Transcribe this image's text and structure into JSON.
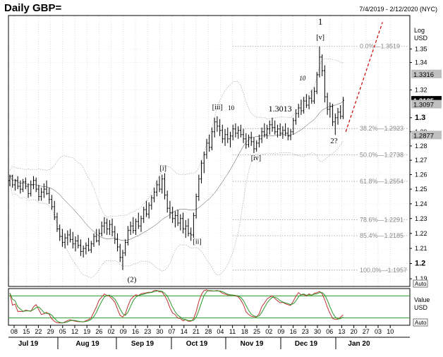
{
  "header": {
    "title": "Daily GBP=",
    "date_range": "7/4/2019 - 2/12/2020 (NYC)"
  },
  "axis": {
    "scale_label": "Log",
    "unit_label": "USD",
    "auto_label": "Auto",
    "lower_value_label": "Value",
    "lower_unit_label": "USD",
    "lower_auto_label": "Auto"
  },
  "chart_data": {
    "type": "candlestick",
    "y_scale": "log",
    "ylim": [
      1.185,
      1.375
    ],
    "y_ticks": [
      {
        "v": 1.35,
        "label": "1.35"
      },
      {
        "v": 1.34,
        "label": "1.34"
      },
      {
        "v": 1.32,
        "label": "1.32"
      },
      {
        "v": 1.3,
        "label": "1.3",
        "bold": true
      },
      {
        "v": 1.29,
        "label": "1.29"
      },
      {
        "v": 1.28,
        "label": "1.28"
      },
      {
        "v": 1.27,
        "label": "1.27"
      },
      {
        "v": 1.26,
        "label": "1.26"
      },
      {
        "v": 1.25,
        "label": "1.25"
      },
      {
        "v": 1.24,
        "label": "1.24"
      },
      {
        "v": 1.23,
        "label": "1.23"
      },
      {
        "v": 1.22,
        "label": "1.22"
      },
      {
        "v": 1.21,
        "label": "1.21"
      },
      {
        "v": 1.2,
        "label": "1.2",
        "bold": true
      },
      {
        "v": 1.19,
        "label": "1.19"
      }
    ],
    "price_tags": [
      {
        "v": 1.3316,
        "label": "1.3316",
        "style": "grey"
      },
      {
        "v": 1.3125,
        "label": "1.3125",
        "style": "black"
      },
      {
        "v": 1.3097,
        "label": "1.3097",
        "style": "grey"
      },
      {
        "v": 1.2877,
        "label": "1.2877",
        "style": "grey"
      }
    ],
    "fib_levels": [
      {
        "v": 1.3519,
        "label": "0.0%—1.3519"
      },
      {
        "v": 1.2923,
        "label": "38.2%—1.2923"
      },
      {
        "v": 1.2738,
        "label": "50.0%—1.2738"
      },
      {
        "v": 1.2554,
        "label": "61.8%—1.2554"
      },
      {
        "v": 1.2291,
        "label": "78.6%—1.2291"
      },
      {
        "v": 1.2185,
        "label": "85.4%—1.2185"
      },
      {
        "v": 1.1957,
        "label": "100.0%—1.1957"
      }
    ],
    "x_day_ticks": [
      "08",
      "15",
      "22",
      "29",
      "05",
      "12",
      "19",
      "26",
      "02",
      "09",
      "16",
      "23",
      "30",
      "07",
      "14",
      "21",
      "28",
      "04",
      "11",
      "18",
      "25",
      "02",
      "09",
      "16",
      "23",
      "30",
      "06",
      "13",
      "20",
      "27",
      "03",
      "10"
    ],
    "x_month_labels": [
      "Jul 19",
      "Aug 19",
      "Sep 19",
      "Oct 19",
      "Nov 19",
      "Dec 19",
      "Jan 20"
    ],
    "wave_labels": [
      {
        "text": "1",
        "v": 1.368,
        "x_index": 118.3,
        "size": 13
      },
      {
        "text": "[v]",
        "v": 1.357,
        "x_index": 118.3,
        "size": 10
      },
      {
        "text": "10",
        "v": 1.327,
        "x_index": 111.5,
        "size": 9,
        "italic": true
      },
      {
        "text": "[iii]",
        "v": 1.306,
        "x_index": 79.1,
        "size": 10
      },
      {
        "text": "10",
        "v": 1.3055,
        "x_index": 84.3,
        "size": 9
      },
      {
        "text": "1.3013",
        "v": 1.3045,
        "x_index": 103,
        "size": 12
      },
      {
        "text": "[iv]",
        "v": 1.27,
        "x_index": 93.8,
        "size": 10
      },
      {
        "text": "2?",
        "v": 1.282,
        "x_index": 123.5,
        "size": 11
      },
      {
        "text": "[i]",
        "v": 1.263,
        "x_index": 58.4,
        "size": 10
      },
      {
        "text": "[ii]",
        "v": 1.213,
        "x_index": 71.4,
        "size": 10
      },
      {
        "text": "(2)",
        "v": 1.188,
        "x_index": 46.5,
        "size": 11
      }
    ],
    "candles": [
      [
        1.256,
        1.26,
        1.252,
        1.259
      ],
      [
        1.259,
        1.26,
        1.251,
        1.253
      ],
      [
        1.253,
        1.257,
        1.249,
        1.256
      ],
      [
        1.256,
        1.259,
        1.25,
        1.252
      ],
      [
        1.252,
        1.256,
        1.247,
        1.25
      ],
      [
        1.25,
        1.257,
        1.248,
        1.255
      ],
      [
        1.255,
        1.258,
        1.25,
        1.252
      ],
      [
        1.252,
        1.254,
        1.244,
        1.247
      ],
      [
        1.247,
        1.256,
        1.245,
        1.253
      ],
      [
        1.253,
        1.259,
        1.25,
        1.256
      ],
      [
        1.256,
        1.258,
        1.248,
        1.25
      ],
      [
        1.25,
        1.253,
        1.242,
        1.245
      ],
      [
        1.245,
        1.251,
        1.242,
        1.248
      ],
      [
        1.248,
        1.254,
        1.244,
        1.25
      ],
      [
        1.25,
        1.256,
        1.246,
        1.247
      ],
      [
        1.247,
        1.251,
        1.24,
        1.243
      ],
      [
        1.243,
        1.246,
        1.236,
        1.238
      ],
      [
        1.238,
        1.242,
        1.229,
        1.231
      ],
      [
        1.231,
        1.234,
        1.221,
        1.223
      ],
      [
        1.223,
        1.226,
        1.215,
        1.218
      ],
      [
        1.218,
        1.223,
        1.211,
        1.214
      ],
      [
        1.214,
        1.22,
        1.21,
        1.217
      ],
      [
        1.217,
        1.222,
        1.212,
        1.219
      ],
      [
        1.219,
        1.223,
        1.214,
        1.216
      ],
      [
        1.216,
        1.221,
        1.21,
        1.213
      ],
      [
        1.213,
        1.218,
        1.208,
        1.215
      ],
      [
        1.215,
        1.219,
        1.21,
        1.212
      ],
      [
        1.212,
        1.216,
        1.205,
        1.208
      ],
      [
        1.208,
        1.212,
        1.204,
        1.21
      ],
      [
        1.21,
        1.214,
        1.206,
        1.212
      ],
      [
        1.212,
        1.217,
        1.208,
        1.209
      ],
      [
        1.209,
        1.215,
        1.207,
        1.213
      ],
      [
        1.213,
        1.22,
        1.211,
        1.218
      ],
      [
        1.218,
        1.223,
        1.214,
        1.215
      ],
      [
        1.215,
        1.223,
        1.212,
        1.22
      ],
      [
        1.22,
        1.228,
        1.218,
        1.225
      ],
      [
        1.225,
        1.231,
        1.22,
        1.227
      ],
      [
        1.227,
        1.23,
        1.219,
        1.223
      ],
      [
        1.223,
        1.229,
        1.219,
        1.226
      ],
      [
        1.226,
        1.23,
        1.218,
        1.221
      ],
      [
        1.221,
        1.225,
        1.213,
        1.216
      ],
      [
        1.216,
        1.22,
        1.208,
        1.211
      ],
      [
        1.211,
        1.213,
        1.201,
        1.204
      ],
      [
        1.204,
        1.209,
        1.1957,
        1.207
      ],
      [
        1.207,
        1.216,
        1.205,
        1.214
      ],
      [
        1.214,
        1.225,
        1.212,
        1.222
      ],
      [
        1.222,
        1.228,
        1.219,
        1.225
      ],
      [
        1.225,
        1.231,
        1.22,
        1.222
      ],
      [
        1.222,
        1.23,
        1.219,
        1.228
      ],
      [
        1.228,
        1.234,
        1.223,
        1.225
      ],
      [
        1.225,
        1.232,
        1.221,
        1.23
      ],
      [
        1.23,
        1.238,
        1.227,
        1.236
      ],
      [
        1.236,
        1.242,
        1.231,
        1.233
      ],
      [
        1.233,
        1.241,
        1.23,
        1.239
      ],
      [
        1.239,
        1.246,
        1.236,
        1.244
      ],
      [
        1.244,
        1.251,
        1.241,
        1.248
      ],
      [
        1.248,
        1.256,
        1.245,
        1.253
      ],
      [
        1.253,
        1.259,
        1.248,
        1.25
      ],
      [
        1.25,
        1.26,
        1.247,
        1.257
      ],
      [
        1.257,
        1.261,
        1.243,
        1.246
      ],
      [
        1.246,
        1.249,
        1.234,
        1.237
      ],
      [
        1.237,
        1.242,
        1.23,
        1.234
      ],
      [
        1.234,
        1.238,
        1.227,
        1.23
      ],
      [
        1.23,
        1.235,
        1.224,
        1.232
      ],
      [
        1.232,
        1.236,
        1.225,
        1.227
      ],
      [
        1.227,
        1.233,
        1.222,
        1.23
      ],
      [
        1.23,
        1.234,
        1.22,
        1.223
      ],
      [
        1.223,
        1.229,
        1.217,
        1.225
      ],
      [
        1.225,
        1.23,
        1.218,
        1.22
      ],
      [
        1.22,
        1.224,
        1.215,
        1.219
      ],
      [
        1.219,
        1.234,
        1.217,
        1.232
      ],
      [
        1.232,
        1.247,
        1.23,
        1.245
      ],
      [
        1.245,
        1.26,
        1.242,
        1.257
      ],
      [
        1.257,
        1.27,
        1.254,
        1.268
      ],
      [
        1.268,
        1.276,
        1.261,
        1.274
      ],
      [
        1.274,
        1.285,
        1.271,
        1.282
      ],
      [
        1.282,
        1.288,
        1.276,
        1.279
      ],
      [
        1.279,
        1.293,
        1.277,
        1.29
      ],
      [
        1.29,
        1.3,
        1.286,
        1.297
      ],
      [
        1.297,
        1.301,
        1.29,
        1.294
      ],
      [
        1.294,
        1.299,
        1.287,
        1.291
      ],
      [
        1.291,
        1.295,
        1.282,
        1.285
      ],
      [
        1.285,
        1.292,
        1.28,
        1.288
      ],
      [
        1.288,
        1.293,
        1.282,
        1.285
      ],
      [
        1.285,
        1.29,
        1.279,
        1.287
      ],
      [
        1.287,
        1.295,
        1.284,
        1.292
      ],
      [
        1.292,
        1.296,
        1.286,
        1.289
      ],
      [
        1.289,
        1.294,
        1.285,
        1.291
      ],
      [
        1.291,
        1.295,
        1.286,
        1.288
      ],
      [
        1.288,
        1.292,
        1.282,
        1.285
      ],
      [
        1.285,
        1.289,
        1.278,
        1.281
      ],
      [
        1.281,
        1.288,
        1.279,
        1.286
      ],
      [
        1.286,
        1.29,
        1.28,
        1.283
      ],
      [
        1.283,
        1.286,
        1.275,
        1.278
      ],
      [
        1.278,
        1.284,
        1.276,
        1.282
      ],
      [
        1.282,
        1.288,
        1.279,
        1.285
      ],
      [
        1.285,
        1.293,
        1.282,
        1.29
      ],
      [
        1.29,
        1.296,
        1.286,
        1.288
      ],
      [
        1.288,
        1.295,
        1.285,
        1.292
      ],
      [
        1.292,
        1.298,
        1.288,
        1.295
      ],
      [
        1.295,
        1.3,
        1.29,
        1.293
      ],
      [
        1.293,
        1.298,
        1.288,
        1.29
      ],
      [
        1.29,
        1.295,
        1.286,
        1.292
      ],
      [
        1.292,
        1.296,
        1.287,
        1.289
      ],
      [
        1.289,
        1.294,
        1.285,
        1.291
      ],
      [
        1.291,
        1.296,
        1.287,
        1.289
      ],
      [
        1.289,
        1.293,
        1.284,
        1.287
      ],
      [
        1.287,
        1.292,
        1.284,
        1.29
      ],
      [
        1.29,
        1.3,
        1.288,
        1.298
      ],
      [
        1.298,
        1.306,
        1.295,
        1.303
      ],
      [
        1.303,
        1.31,
        1.3,
        1.307
      ],
      [
        1.307,
        1.313,
        1.302,
        1.305
      ],
      [
        1.305,
        1.315,
        1.303,
        1.312
      ],
      [
        1.312,
        1.317,
        1.307,
        1.309
      ],
      [
        1.309,
        1.316,
        1.306,
        1.314
      ],
      [
        1.314,
        1.32,
        1.31,
        1.312
      ],
      [
        1.312,
        1.322,
        1.31,
        1.319
      ],
      [
        1.319,
        1.333,
        1.317,
        1.331
      ],
      [
        1.331,
        1.3519,
        1.329,
        1.344
      ],
      [
        1.344,
        1.346,
        1.33,
        1.334
      ],
      [
        1.334,
        1.338,
        1.311,
        1.315
      ],
      [
        1.315,
        1.318,
        1.302,
        1.306
      ],
      [
        1.306,
        1.311,
        1.3,
        1.308
      ],
      [
        1.308,
        1.31,
        1.294,
        1.297
      ],
      [
        1.297,
        1.303,
        1.2877,
        1.3
      ],
      [
        1.3,
        1.307,
        1.295,
        1.304
      ],
      [
        1.304,
        1.309,
        1.299,
        1.301
      ],
      [
        1.301,
        1.315,
        1.299,
        1.3125
      ]
    ],
    "projection": [
      [
        128,
        1.29
      ],
      [
        142,
        1.37
      ]
    ],
    "oscillator": {
      "upper": 80,
      "lower": 20,
      "ylim": [
        0,
        100
      ]
    }
  }
}
